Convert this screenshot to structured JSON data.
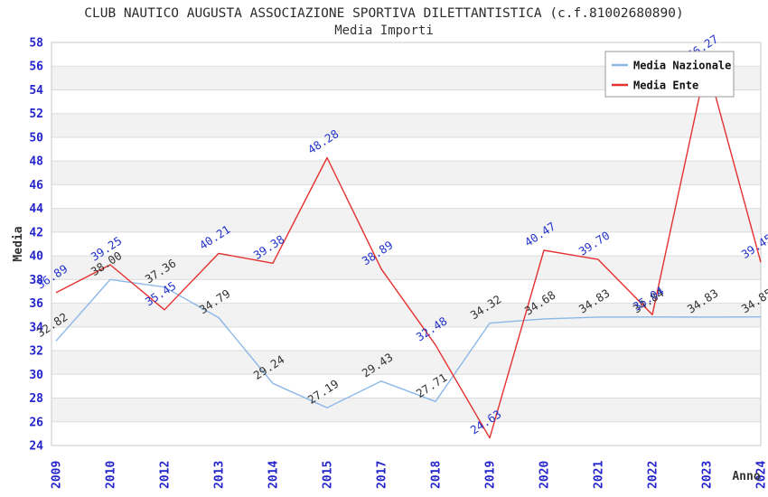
{
  "chart_data": {
    "type": "line",
    "title": "CLUB NAUTICO AUGUSTA ASSOCIAZIONE SPORTIVA DILETTANTISTICA (c.f.81002680890)",
    "subtitle": "Media Importi",
    "xlabel": "Anno",
    "ylabel": "Media",
    "ylim": [
      24,
      58
    ],
    "ytick_step": 2,
    "grid": "horizontal-bands",
    "legend_position": "top-right",
    "categories": [
      "2009",
      "2010",
      "2012",
      "2013",
      "2014",
      "2015",
      "2017",
      "2018",
      "2019",
      "2020",
      "2021",
      "2022",
      "2023",
      "2024"
    ],
    "series": [
      {
        "name": "Media Nazionale",
        "color": "#8cb8e8",
        "label_color": "#333333",
        "values": [
          32.82,
          38.0,
          37.36,
          34.79,
          29.24,
          27.19,
          29.43,
          27.71,
          34.32,
          34.68,
          34.83,
          34.84,
          34.83,
          34.85
        ]
      },
      {
        "name": "Media Ente",
        "color": "#e53030",
        "label_color": "#2233cc",
        "values": [
          36.89,
          39.25,
          35.45,
          40.21,
          39.38,
          48.28,
          38.89,
          32.48,
          24.63,
          40.47,
          39.7,
          35.04,
          56.27,
          39.45
        ]
      }
    ],
    "colors": {
      "tick_label": "#2424cc",
      "band_fill": "#f2f2f2",
      "grid_line": "#dcdcdc",
      "plot_border": "#c8c8c8",
      "legend_border": "#999999",
      "title_text": "#2b2b2b"
    }
  }
}
